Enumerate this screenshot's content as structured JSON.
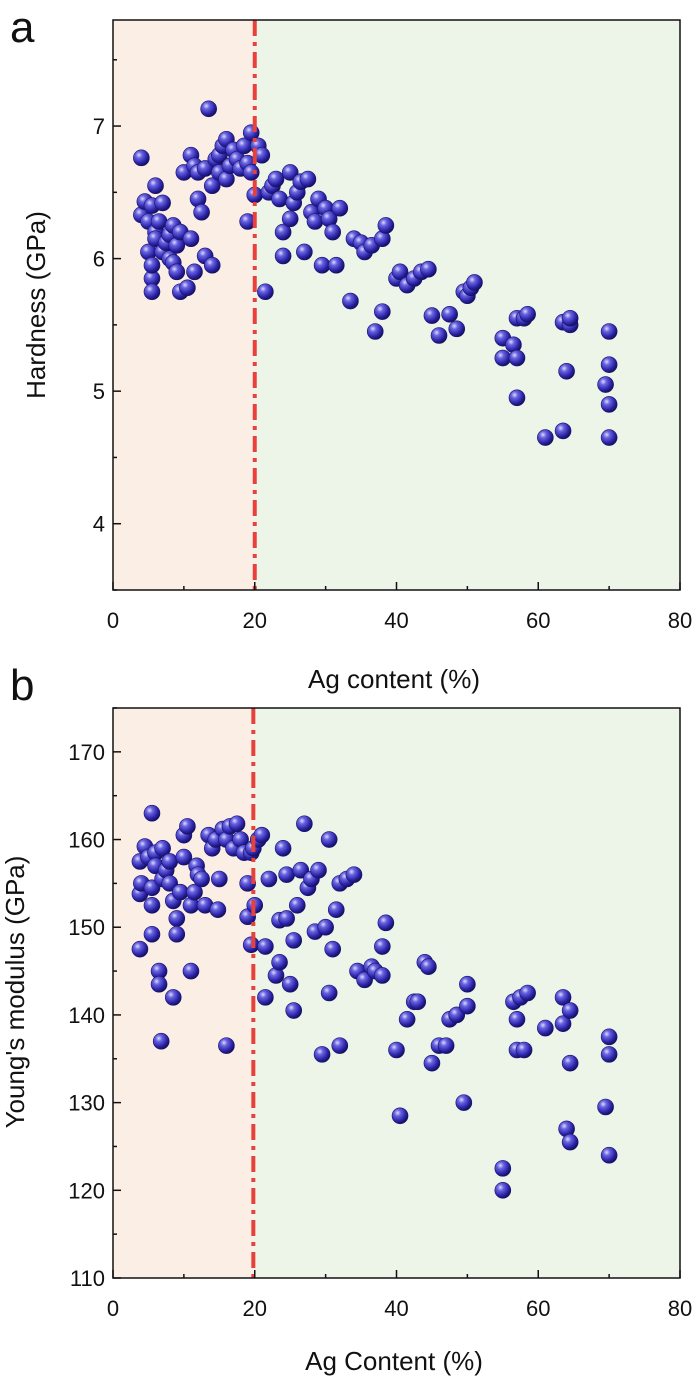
{
  "colors": {
    "region_low": "#fbeee4",
    "region_high": "#edf4e8",
    "divider": "#e8413b",
    "marker": "#2b24a8",
    "axis": "#111111"
  },
  "chart_data": [
    {
      "type": "scatter",
      "panel": "a",
      "xlabel": "Ag content (%)",
      "ylabel": "Hardness (GPa)",
      "xlim": [
        0,
        80
      ],
      "ylim": [
        3.5,
        7.8
      ],
      "xticks": [
        0,
        20,
        40,
        60,
        80
      ],
      "yticks": [
        4,
        5,
        6,
        7
      ],
      "divider_x": 20,
      "marker_icon": "sphere-marker-icon",
      "points": [
        [
          4,
          6.76
        ],
        [
          4,
          6.33
        ],
        [
          4.5,
          6.43
        ],
        [
          5,
          6.28
        ],
        [
          5.5,
          6.4
        ],
        [
          5,
          6.05
        ],
        [
          6,
          6.55
        ],
        [
          5.5,
          5.85
        ],
        [
          5.5,
          5.95
        ],
        [
          5.5,
          5.75
        ],
        [
          6,
          6.2
        ],
        [
          6,
          6.15
        ],
        [
          6.5,
          6.28
        ],
        [
          7,
          6.05
        ],
        [
          7,
          6.42
        ],
        [
          7.5,
          6.12
        ],
        [
          8,
          6.18
        ],
        [
          8,
          6.0
        ],
        [
          8.5,
          5.97
        ],
        [
          8.5,
          6.25
        ],
        [
          9,
          5.9
        ],
        [
          9,
          6.1
        ],
        [
          9.5,
          6.2
        ],
        [
          9.5,
          5.75
        ],
        [
          10,
          6.65
        ],
        [
          10.5,
          5.78
        ],
        [
          11,
          6.15
        ],
        [
          11,
          6.78
        ],
        [
          11.5,
          6.7
        ],
        [
          11.5,
          5.9
        ],
        [
          12,
          6.45
        ],
        [
          12,
          6.65
        ],
        [
          12.5,
          6.35
        ],
        [
          13,
          6.68
        ],
        [
          13,
          6.02
        ],
        [
          13.5,
          7.13
        ],
        [
          14,
          5.95
        ],
        [
          14,
          6.55
        ],
        [
          14.5,
          6.75
        ],
        [
          15,
          6.78
        ],
        [
          15,
          6.65
        ],
        [
          15.5,
          6.85
        ],
        [
          16,
          6.6
        ],
        [
          16,
          6.9
        ],
        [
          16.5,
          6.7
        ],
        [
          17,
          6.82
        ],
        [
          17.5,
          6.75
        ],
        [
          18,
          6.68
        ],
        [
          18.5,
          6.85
        ],
        [
          19,
          6.72
        ],
        [
          19,
          6.28
        ],
        [
          19.5,
          6.95
        ],
        [
          19.5,
          6.65
        ],
        [
          20,
          6.48
        ],
        [
          20.5,
          6.85
        ],
        [
          21,
          6.78
        ],
        [
          21.5,
          5.75
        ],
        [
          22,
          6.5
        ],
        [
          22.5,
          6.55
        ],
        [
          23,
          6.6
        ],
        [
          23.5,
          6.45
        ],
        [
          24,
          6.2
        ],
        [
          24,
          6.02
        ],
        [
          25,
          6.65
        ],
        [
          25,
          6.3
        ],
        [
          25.5,
          6.42
        ],
        [
          26,
          6.5
        ],
        [
          26.5,
          6.58
        ],
        [
          27,
          6.05
        ],
        [
          27.5,
          6.6
        ],
        [
          28,
          6.35
        ],
        [
          28.5,
          6.28
        ],
        [
          29,
          6.45
        ],
        [
          29.5,
          5.95
        ],
        [
          30,
          6.38
        ],
        [
          30.5,
          6.3
        ],
        [
          31,
          6.2
        ],
        [
          31.5,
          5.95
        ],
        [
          32,
          6.38
        ],
        [
          33.5,
          5.68
        ],
        [
          34,
          6.15
        ],
        [
          35,
          6.12
        ],
        [
          35.5,
          6.05
        ],
        [
          36.5,
          6.1
        ],
        [
          37,
          5.45
        ],
        [
          38,
          6.15
        ],
        [
          38,
          5.6
        ],
        [
          38.5,
          6.25
        ],
        [
          40,
          5.85
        ],
        [
          40.5,
          5.9
        ],
        [
          41.5,
          5.8
        ],
        [
          42.5,
          5.85
        ],
        [
          43.5,
          5.9
        ],
        [
          44.5,
          5.92
        ],
        [
          45,
          5.57
        ],
        [
          46,
          5.42
        ],
        [
          47.5,
          5.58
        ],
        [
          48.5,
          5.47
        ],
        [
          49.5,
          5.75
        ],
        [
          50,
          5.72
        ],
        [
          50.5,
          5.78
        ],
        [
          51,
          5.82
        ],
        [
          55,
          5.4
        ],
        [
          55,
          5.25
        ],
        [
          56.5,
          5.35
        ],
        [
          57,
          5.55
        ],
        [
          57,
          5.25
        ],
        [
          57,
          4.95
        ],
        [
          58,
          5.55
        ],
        [
          58.5,
          5.58
        ],
        [
          61,
          4.65
        ],
        [
          63.5,
          4.7
        ],
        [
          63.5,
          5.52
        ],
        [
          64,
          5.15
        ],
        [
          64.5,
          5.5
        ],
        [
          64.5,
          5.55
        ],
        [
          69.5,
          5.05
        ],
        [
          70,
          5.2
        ],
        [
          70,
          5.45
        ],
        [
          70,
          4.9
        ],
        [
          70,
          4.65
        ]
      ]
    },
    {
      "type": "scatter",
      "panel": "b",
      "xlabel": "Ag Content (%)",
      "ylabel": "Young's modulus (GPa)",
      "xlim": [
        0,
        80
      ],
      "ylim": [
        110,
        175
      ],
      "xticks": [
        0,
        20,
        40,
        60,
        80
      ],
      "yticks": [
        110,
        120,
        130,
        140,
        150,
        160,
        170
      ],
      "divider_x": 19.8,
      "marker_icon": "sphere-marker-icon",
      "points": [
        [
          3.8,
          147.5
        ],
        [
          3.8,
          153.8
        ],
        [
          3.8,
          157.5
        ],
        [
          4,
          155
        ],
        [
          4.5,
          159.2
        ],
        [
          5,
          158
        ],
        [
          5.5,
          163
        ],
        [
          5.5,
          154.5
        ],
        [
          5.5,
          152.5
        ],
        [
          5.5,
          149.2
        ],
        [
          6,
          158.5
        ],
        [
          6,
          157
        ],
        [
          6.5,
          145
        ],
        [
          6.5,
          143.5
        ],
        [
          6.8,
          137
        ],
        [
          7,
          159
        ],
        [
          7,
          155.5
        ],
        [
          7.5,
          156.5
        ],
        [
          8,
          157.5
        ],
        [
          8,
          155
        ],
        [
          8.5,
          153
        ],
        [
          8.5,
          142
        ],
        [
          9,
          151
        ],
        [
          9,
          149.2
        ],
        [
          9.5,
          154
        ],
        [
          10,
          160.5
        ],
        [
          10,
          158
        ],
        [
          10.5,
          161.5
        ],
        [
          11,
          145
        ],
        [
          11,
          152.5
        ],
        [
          11.5,
          154
        ],
        [
          11.8,
          157
        ],
        [
          12,
          156
        ],
        [
          12.5,
          155.5
        ],
        [
          13,
          152.5
        ],
        [
          13.5,
          160.5
        ],
        [
          14,
          159
        ],
        [
          14.5,
          160
        ],
        [
          14.8,
          152
        ],
        [
          15,
          155.5
        ],
        [
          15.5,
          161.2
        ],
        [
          16,
          136.5
        ],
        [
          16,
          160
        ],
        [
          16.5,
          161.5
        ],
        [
          17,
          159
        ],
        [
          17.5,
          161.8
        ],
        [
          18,
          160
        ],
        [
          18.5,
          158.5
        ],
        [
          19,
          155
        ],
        [
          19,
          151.2
        ],
        [
          19.5,
          148
        ],
        [
          19.5,
          158.5
        ],
        [
          19.8,
          159
        ],
        [
          20,
          152.5
        ],
        [
          20.5,
          160
        ],
        [
          21,
          160.5
        ],
        [
          21.5,
          142
        ],
        [
          21.5,
          147.8
        ],
        [
          22,
          155.5
        ],
        [
          23,
          144.5
        ],
        [
          23.5,
          146
        ],
        [
          23.5,
          150.8
        ],
        [
          24,
          159
        ],
        [
          24.5,
          151
        ],
        [
          24.5,
          156
        ],
        [
          25,
          143.5
        ],
        [
          25.5,
          140.5
        ],
        [
          25.5,
          148.5
        ],
        [
          26,
          152.5
        ],
        [
          26.5,
          156.5
        ],
        [
          27,
          161.8
        ],
        [
          27.5,
          154.5
        ],
        [
          28,
          155.5
        ],
        [
          28.5,
          149.5
        ],
        [
          29,
          156.5
        ],
        [
          29.5,
          135.5
        ],
        [
          30,
          150
        ],
        [
          30.5,
          160
        ],
        [
          30.5,
          142.5
        ],
        [
          31,
          147.5
        ],
        [
          31.5,
          152
        ],
        [
          32,
          155
        ],
        [
          32,
          136.5
        ],
        [
          33,
          155.5
        ],
        [
          34,
          156
        ],
        [
          34.5,
          145
        ],
        [
          35.5,
          144
        ],
        [
          36.5,
          145.5
        ],
        [
          37,
          145
        ],
        [
          38,
          144.5
        ],
        [
          38,
          147.8
        ],
        [
          38.5,
          150.5
        ],
        [
          40,
          136
        ],
        [
          40.5,
          128.5
        ],
        [
          41.5,
          139.5
        ],
        [
          42.5,
          141.5
        ],
        [
          43,
          141.5
        ],
        [
          44,
          146
        ],
        [
          44.5,
          145.5
        ],
        [
          45,
          134.5
        ],
        [
          46,
          136.5
        ],
        [
          47,
          136.5
        ],
        [
          47.5,
          139.5
        ],
        [
          48.5,
          140
        ],
        [
          49.5,
          130
        ],
        [
          50,
          143.5
        ],
        [
          50,
          141
        ],
        [
          55,
          122.5
        ],
        [
          55,
          120
        ],
        [
          56.5,
          141.5
        ],
        [
          57,
          139.5
        ],
        [
          57,
          136
        ],
        [
          57.5,
          142
        ],
        [
          58,
          136
        ],
        [
          58.5,
          142.5
        ],
        [
          61,
          138.5
        ],
        [
          63.5,
          139
        ],
        [
          63.5,
          142
        ],
        [
          64,
          127
        ],
        [
          64.5,
          125.5
        ],
        [
          64.5,
          140.5
        ],
        [
          64.5,
          134.5
        ],
        [
          69.5,
          129.5
        ],
        [
          70,
          135.5
        ],
        [
          70,
          137.5
        ],
        [
          70,
          124
        ]
      ]
    }
  ]
}
